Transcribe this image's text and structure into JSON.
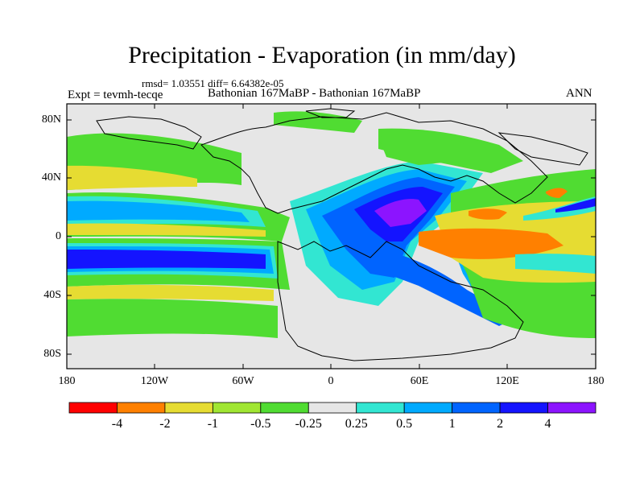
{
  "title": "Precipitation - Evaporation (in mm/day)",
  "stats": "rmsd= 1.03551 diff= 6.64382e-05",
  "left_subtitle": "Expt = tevmh-tecqe",
  "center_subtitle": "Bathonian 167MaBP - Bathonian 167MaBP",
  "right_subtitle": "ANN",
  "map": {
    "projection": "cylindrical-equidistant",
    "lon_range": [
      -180,
      180
    ],
    "lat_range": [
      -90,
      90
    ],
    "y_ticks": [
      "80N",
      "40N",
      "0",
      "40S",
      "80S"
    ],
    "x_ticks": [
      "180",
      "120W",
      "60W",
      "0",
      "60E",
      "120E",
      "180"
    ],
    "background_color": "#e6e6e6"
  },
  "colorbar": {
    "colors": [
      "#ff0000",
      "#ff8000",
      "#e6dc32",
      "#a0e632",
      "#50dc32",
      "#e6e6e6",
      "#32e6d2",
      "#00aaff",
      "#0064ff",
      "#1414ff",
      "#8c14ff"
    ],
    "labels": [
      "-4",
      "-2",
      "-1",
      "-0.5",
      "-0.25",
      "0.25",
      "0.5",
      "1",
      "2",
      "4"
    ]
  }
}
